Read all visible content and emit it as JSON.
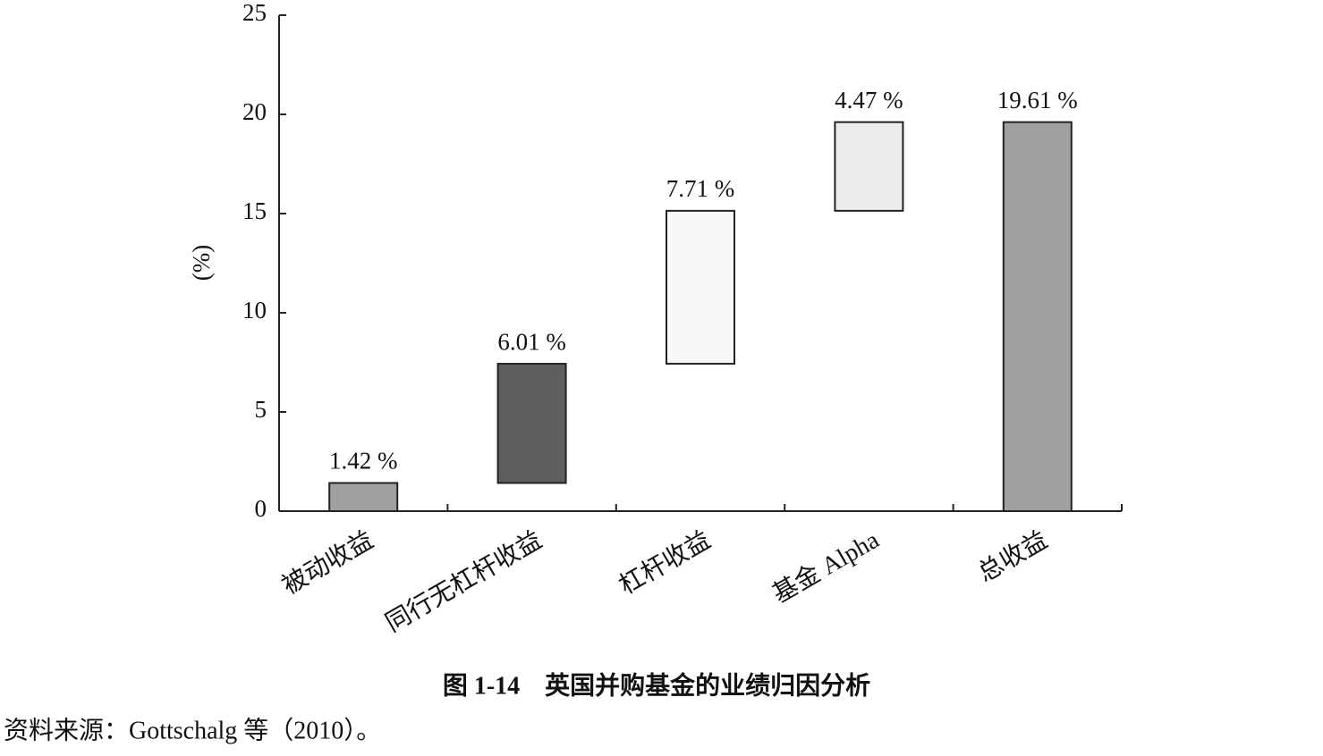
{
  "chart_data": {
    "type": "waterfall",
    "y_label": "(%)",
    "categories": [
      "被动收益",
      "同行无杠杆收益",
      "杠杆收益",
      "基金 Alpha",
      "总收益"
    ],
    "values": [
      1.42,
      6.01,
      7.71,
      4.47,
      19.61
    ],
    "value_labels": [
      "1.42 %",
      "6.01 %",
      "7.71 %",
      "4.47 %",
      "19.61 %"
    ],
    "measures": [
      "relative",
      "relative",
      "relative",
      "relative",
      "total"
    ],
    "colors": [
      "#a0a0a0",
      "#5e5e5e",
      "#f8f8f8",
      "#ececec",
      "#a0a0a0"
    ],
    "ylim": [
      0,
      25
    ],
    "yticks": [
      0,
      5,
      10,
      15,
      20,
      25
    ],
    "grid": false
  },
  "caption": "图 1-14　英国并购基金的业绩归因分析",
  "source": "资料来源：Gottschalg 等（2010）。"
}
